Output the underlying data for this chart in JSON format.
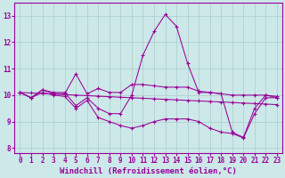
{
  "background_color": "#cce8e8",
  "line_color": "#990099",
  "grid_color": "#aacccc",
  "xlim": [
    -0.5,
    23.5
  ],
  "ylim": [
    7.8,
    13.5
  ],
  "yticks": [
    8,
    9,
    10,
    11,
    12,
    13
  ],
  "xticks": [
    0,
    1,
    2,
    3,
    4,
    5,
    6,
    7,
    8,
    9,
    10,
    11,
    12,
    13,
    14,
    15,
    16,
    17,
    18,
    19,
    20,
    21,
    22,
    23
  ],
  "xlabel": "Windchill (Refroidissement éolien,°C)",
  "tick_fontsize": 5.5,
  "xlabel_fontsize": 6.5,
  "y_main": [
    10.1,
    9.9,
    10.2,
    10.1,
    10.1,
    9.6,
    9.9,
    9.5,
    9.3,
    9.3,
    10.0,
    11.5,
    12.4,
    13.05,
    12.6,
    11.2,
    10.1,
    10.1,
    10.05,
    8.6,
    8.4,
    9.5,
    10.0,
    9.9
  ],
  "y_linear": [
    10.1,
    10.08,
    10.06,
    10.04,
    10.02,
    10.0,
    9.98,
    9.96,
    9.94,
    9.92,
    9.9,
    9.88,
    9.86,
    9.84,
    9.82,
    9.8,
    9.78,
    9.76,
    9.74,
    9.72,
    9.7,
    9.68,
    9.66,
    9.64
  ],
  "y_upper": [
    10.1,
    9.9,
    10.2,
    10.05,
    10.05,
    10.8,
    10.05,
    10.25,
    10.1,
    10.1,
    10.4,
    10.4,
    10.35,
    10.3,
    10.3,
    10.3,
    10.15,
    10.1,
    10.05,
    10.0,
    10.0,
    10.0,
    10.0,
    9.95
  ],
  "y_lower": [
    10.1,
    9.9,
    10.1,
    10.0,
    9.95,
    9.5,
    9.8,
    9.15,
    9.0,
    8.85,
    8.75,
    8.85,
    9.0,
    9.1,
    9.1,
    9.1,
    9.0,
    8.75,
    8.6,
    8.55,
    8.38,
    9.3,
    9.9,
    9.9
  ]
}
